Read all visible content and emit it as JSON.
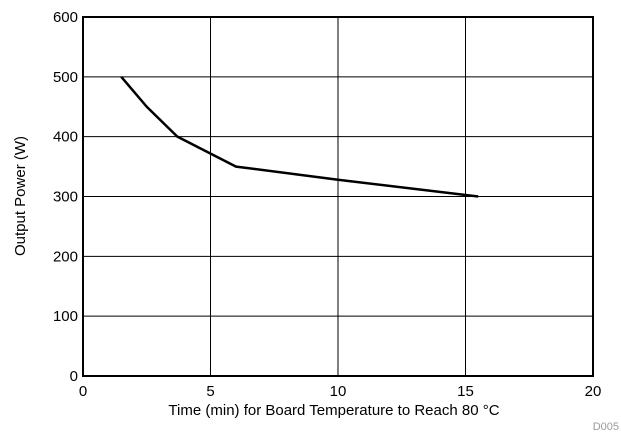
{
  "chart_data": {
    "type": "line",
    "xlabel": "Time (min) for Board Temperature to Reach 80 °C",
    "ylabel": "Output Power (W)",
    "xlim": [
      0,
      20
    ],
    "ylim": [
      0,
      600
    ],
    "x_ticks": [
      0,
      5,
      10,
      15,
      20
    ],
    "y_ticks": [
      0,
      100,
      200,
      300,
      400,
      500,
      600
    ],
    "grid": true,
    "legend": "none",
    "series": [
      {
        "x": [
          1.5,
          2.5,
          3.7,
          6.0,
          10.0,
          15.5
        ],
        "y": [
          500,
          450,
          400,
          350,
          328,
          300
        ]
      }
    ],
    "colors": {
      "line": "#000000",
      "grid": "#000000",
      "frame": "#000000"
    }
  },
  "figure_id": "D005"
}
